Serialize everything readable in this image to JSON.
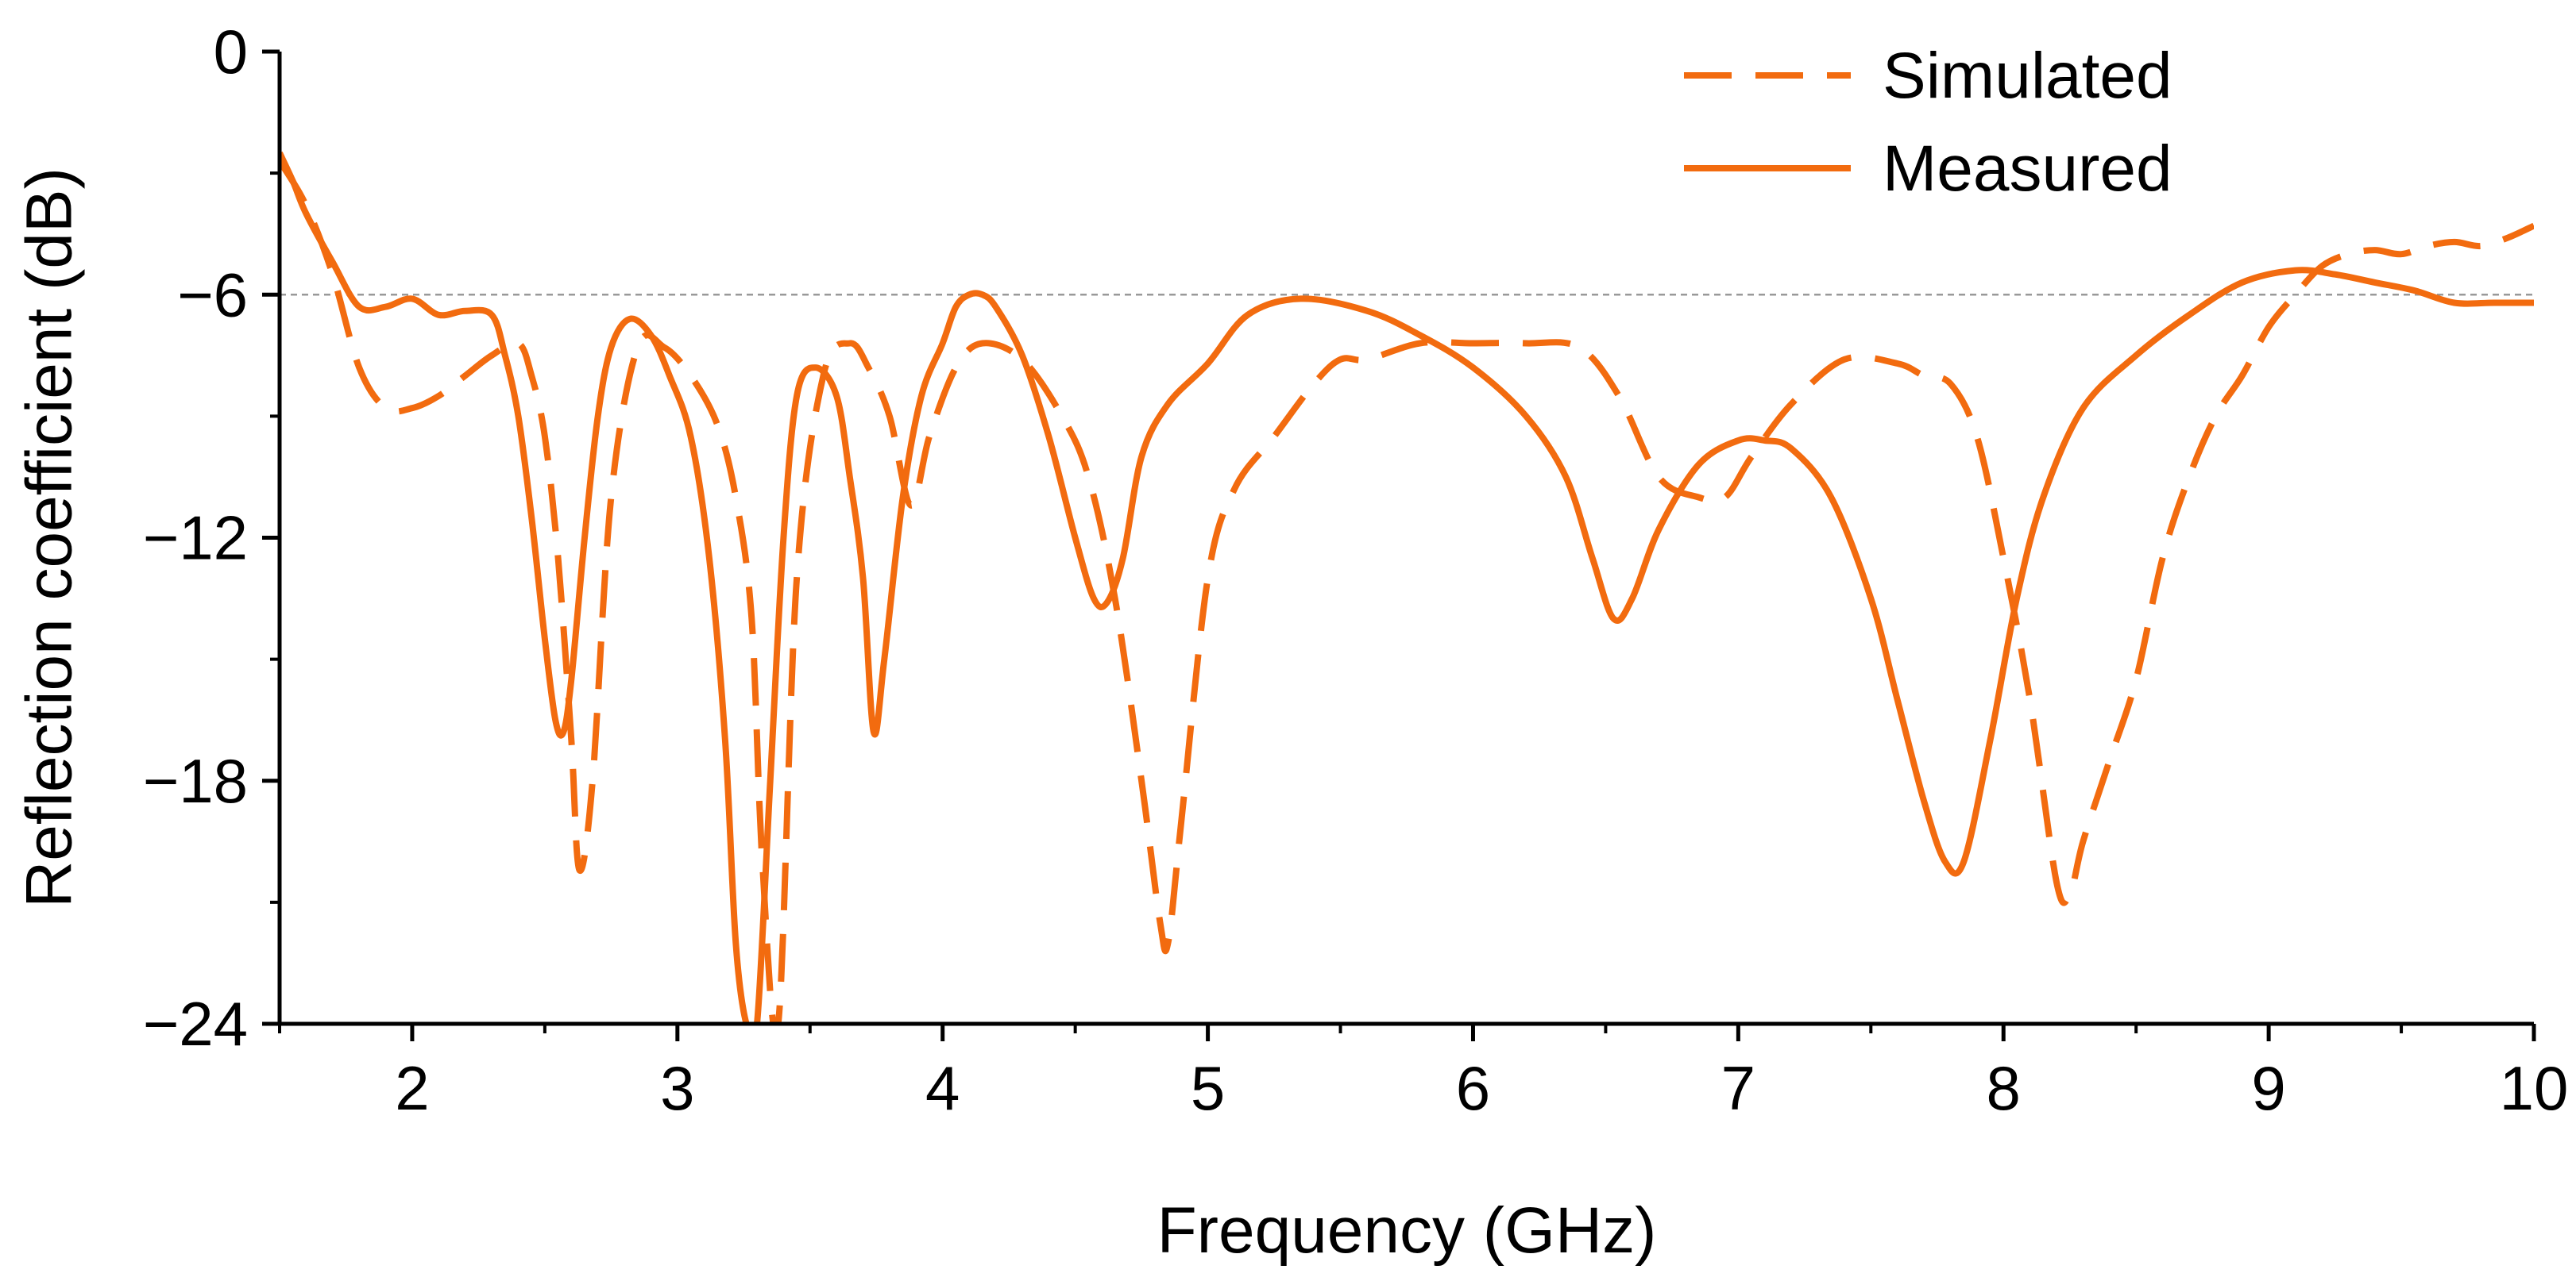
{
  "chart_data": {
    "type": "line",
    "title": "",
    "xlabel": "Frequency (GHz)",
    "ylabel": "Reflection coefficient (dB)",
    "xlim": [
      1.5,
      10
    ],
    "ylim": [
      -24,
      0
    ],
    "xticks": [
      2,
      3,
      4,
      5,
      6,
      7,
      8,
      9,
      10
    ],
    "yticks": [
      0,
      -6,
      -12,
      -18,
      -24
    ],
    "xtick_labels": [
      "2",
      "3",
      "4",
      "5",
      "6",
      "7",
      "8",
      "9",
      "10"
    ],
    "ytick_labels": [
      "0",
      "−6",
      "−12",
      "−18",
      "−24"
    ],
    "reference_line": {
      "y": -6,
      "style": "dashed",
      "color": "#999999"
    },
    "grid": false,
    "legend_position": "top-right",
    "series": [
      {
        "name": "Simulated",
        "style": "dashed",
        "color": "#F26B0F",
        "x": [
          1.5,
          1.6,
          1.7,
          1.8,
          1.9,
          2.0,
          2.1,
          2.2,
          2.3,
          2.4,
          2.45,
          2.5,
          2.55,
          2.6,
          2.63,
          2.68,
          2.75,
          2.85,
          2.95,
          3.05,
          3.15,
          3.22,
          3.28,
          3.32,
          3.38,
          3.45,
          3.55,
          3.65,
          3.72,
          3.8,
          3.88,
          3.95,
          4.05,
          4.15,
          4.3,
          4.45,
          4.55,
          4.65,
          4.75,
          4.82,
          4.85,
          4.9,
          5.0,
          5.1,
          5.25,
          5.4,
          5.5,
          5.6,
          5.8,
          6.0,
          6.2,
          6.4,
          6.55,
          6.7,
          6.85,
          6.95,
          7.05,
          7.2,
          7.4,
          7.6,
          7.7,
          7.8,
          7.9,
          8.0,
          8.1,
          8.2,
          8.25,
          8.3,
          8.4,
          8.5,
          8.6,
          8.7,
          8.8,
          8.9,
          9.0,
          9.1,
          9.2,
          9.3,
          9.4,
          9.5,
          9.6,
          9.7,
          9.8,
          9.9,
          10.0
        ],
        "y": [
          -2.7,
          -3.8,
          -5.5,
          -7.8,
          -8.8,
          -8.8,
          -8.5,
          -8.0,
          -7.5,
          -7.2,
          -8.0,
          -9.5,
          -12.5,
          -17.0,
          -20.2,
          -18.0,
          -11.0,
          -7.3,
          -7.3,
          -8.0,
          -9.2,
          -11.0,
          -14.0,
          -20.0,
          -24.0,
          -13.0,
          -8.0,
          -7.2,
          -7.8,
          -9.0,
          -11.2,
          -9.5,
          -7.8,
          -7.2,
          -7.6,
          -9.0,
          -10.5,
          -13.5,
          -18.0,
          -21.5,
          -22.0,
          -19.0,
          -13.0,
          -10.8,
          -9.5,
          -8.2,
          -7.6,
          -7.6,
          -7.2,
          -7.2,
          -7.2,
          -7.3,
          -8.5,
          -10.5,
          -11.0,
          -11.0,
          -10.0,
          -8.7,
          -7.6,
          -7.7,
          -8.0,
          -8.2,
          -9.5,
          -12.5,
          -16.0,
          -20.5,
          -20.8,
          -19.5,
          -17.5,
          -15.5,
          -12.5,
          -10.5,
          -9.0,
          -8.0,
          -6.8,
          -6.0,
          -5.3,
          -5.0,
          -4.9,
          -5.0,
          -4.8,
          -4.7,
          -4.8,
          -4.6,
          -4.3
        ]
      },
      {
        "name": "Measured",
        "style": "solid",
        "color": "#F26B0F",
        "x": [
          1.5,
          1.55,
          1.6,
          1.7,
          1.8,
          1.9,
          2.0,
          2.1,
          2.2,
          2.3,
          2.35,
          2.4,
          2.45,
          2.5,
          2.54,
          2.57,
          2.6,
          2.65,
          2.7,
          2.75,
          2.82,
          2.9,
          2.97,
          3.05,
          3.12,
          3.18,
          3.22,
          3.26,
          3.3,
          3.35,
          3.4,
          3.45,
          3.52,
          3.6,
          3.65,
          3.7,
          3.74,
          3.78,
          3.85,
          3.92,
          4.0,
          4.05,
          4.1,
          4.15,
          4.2,
          4.3,
          4.4,
          4.5,
          4.57,
          4.62,
          4.68,
          4.75,
          4.85,
          5.0,
          5.15,
          5.35,
          5.6,
          5.8,
          6.0,
          6.2,
          6.35,
          6.45,
          6.53,
          6.6,
          6.7,
          6.85,
          7.0,
          7.1,
          7.2,
          7.35,
          7.5,
          7.6,
          7.7,
          7.78,
          7.85,
          7.95,
          8.05,
          8.15,
          8.3,
          8.5,
          8.7,
          8.9,
          9.1,
          9.25,
          9.4,
          9.55,
          9.7,
          9.85,
          10.0
        ],
        "y": [
          -2.5,
          -3.2,
          -4.0,
          -5.2,
          -6.3,
          -6.3,
          -6.1,
          -6.5,
          -6.4,
          -6.5,
          -7.5,
          -9.0,
          -11.5,
          -14.5,
          -16.5,
          -16.8,
          -15.5,
          -12.0,
          -9.0,
          -7.3,
          -6.6,
          -7.0,
          -8.0,
          -9.5,
          -12.5,
          -17.0,
          -22.0,
          -24.0,
          -24.0,
          -18.0,
          -12.0,
          -8.5,
          -7.8,
          -8.5,
          -10.5,
          -13.0,
          -16.8,
          -15.0,
          -11.0,
          -8.5,
          -7.2,
          -6.3,
          -6.0,
          -6.0,
          -6.3,
          -7.5,
          -9.5,
          -12.0,
          -13.5,
          -13.6,
          -12.5,
          -10.0,
          -8.7,
          -7.7,
          -6.5,
          -6.1,
          -6.4,
          -7.0,
          -7.8,
          -9.0,
          -10.5,
          -12.5,
          -14.0,
          -13.5,
          -11.8,
          -10.2,
          -9.6,
          -9.6,
          -9.8,
          -11.0,
          -13.5,
          -16.0,
          -18.5,
          -20.0,
          -20.0,
          -17.0,
          -13.5,
          -11.0,
          -8.8,
          -7.5,
          -6.5,
          -5.7,
          -5.4,
          -5.5,
          -5.7,
          -5.9,
          -6.2,
          -6.2,
          -6.2
        ]
      }
    ]
  }
}
